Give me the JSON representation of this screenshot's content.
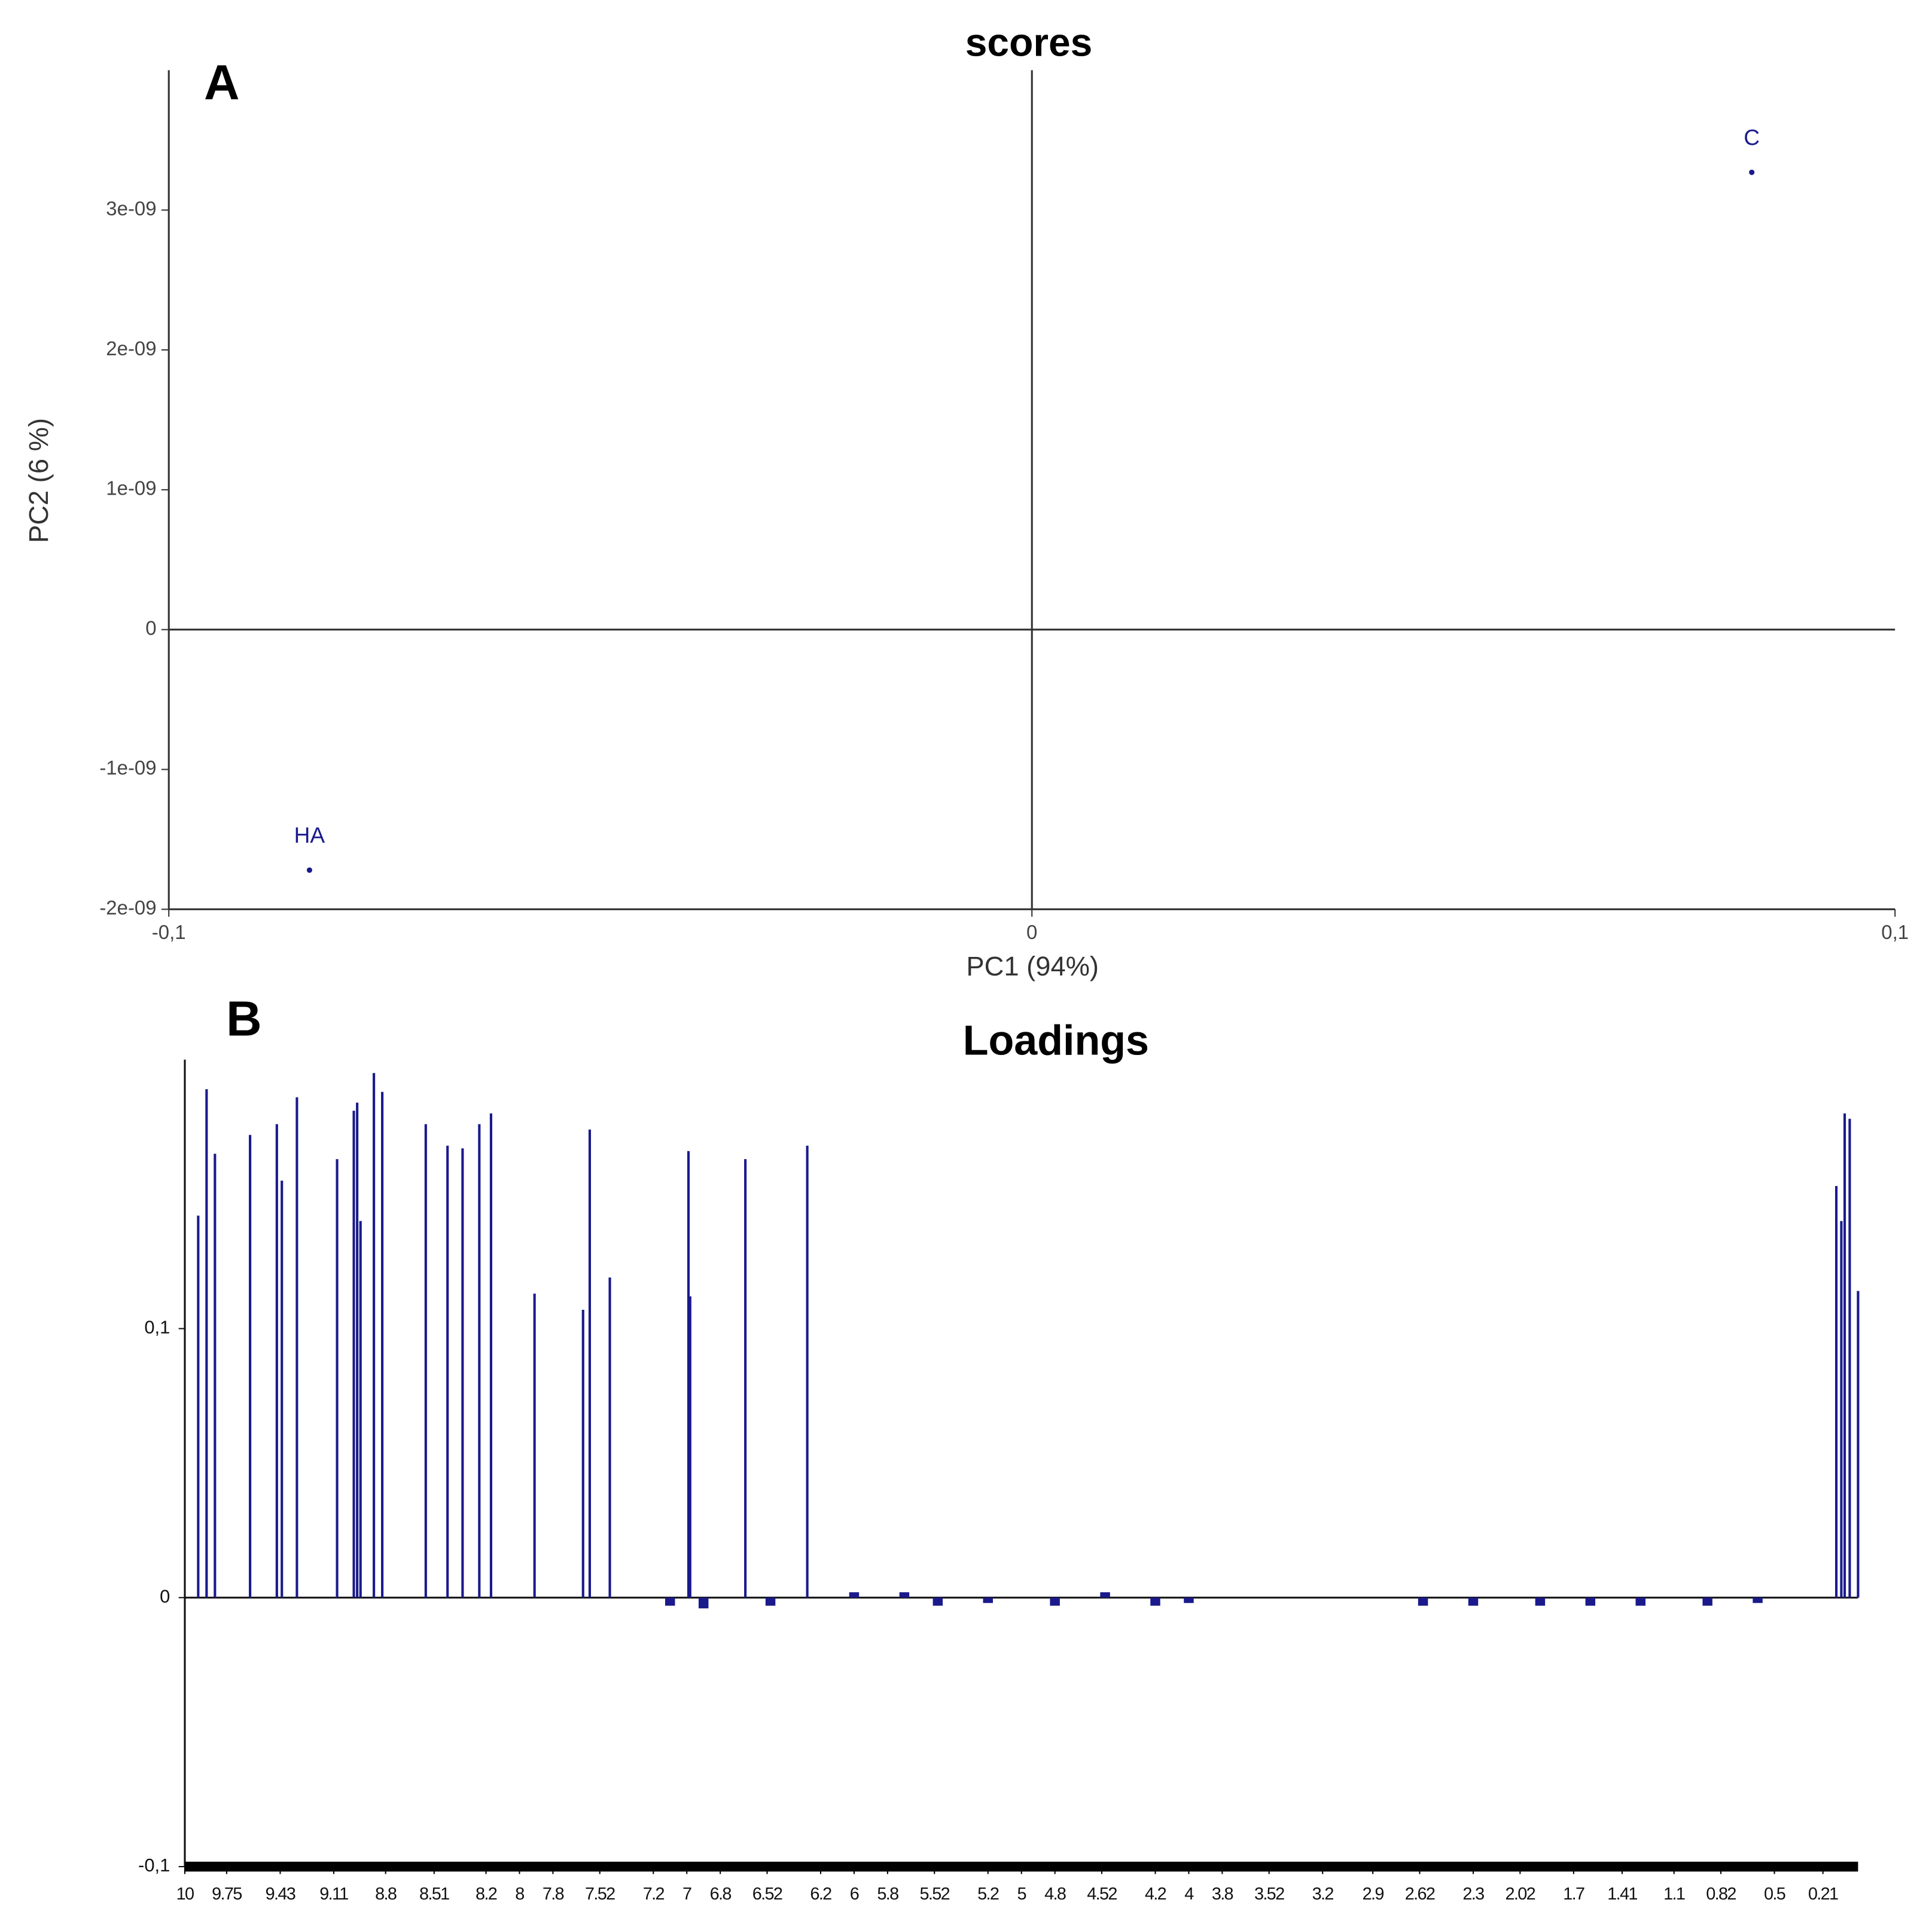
{
  "chart_data": [
    {
      "type": "scatter",
      "panel_label": "A",
      "title": "scores",
      "xlabel": "PC1 (94%)",
      "ylabel": "PC2 (6 %)",
      "labels": [
        "HA",
        "C"
      ],
      "x": [
        -0.0837,
        0.0834
      ],
      "values": [
        -1.72e-09,
        3.27e-09
      ],
      "color": "#1a1a8c",
      "xlim": [
        -0.1,
        0.1
      ],
      "xticks": [
        {
          "value": -0.1,
          "label": "-0,1"
        },
        0,
        {
          "value": 0.1,
          "label": "0,1"
        }
      ],
      "ylim": [
        -2e-09,
        4e-09
      ],
      "yticks": [
        {
          "value": -2e-09,
          "label": "-2e-09"
        },
        {
          "value": -1e-09,
          "label": "-1e-09"
        },
        0,
        {
          "value": 1e-09,
          "label": "1e-09"
        },
        {
          "value": 2e-09,
          "label": "2e-09"
        },
        {
          "value": 3e-09,
          "label": "3e-09"
        }
      ]
    },
    {
      "type": "bar",
      "panel_label": "B",
      "title": "Loadings",
      "x": [
        9.92,
        9.87,
        9.82,
        9.61,
        9.45,
        9.42,
        9.33,
        9.09,
        8.99,
        8.97,
        8.95,
        8.87,
        8.82,
        8.56,
        8.43,
        8.34,
        8.24,
        8.17,
        7.91,
        7.62,
        7.58,
        7.46,
        7.1,
        6.99,
        6.98,
        6.9,
        6.65,
        6.5,
        6.28,
        6.0,
        5.7,
        5.5,
        5.2,
        4.8,
        4.5,
        4.2,
        4.0,
        2.6,
        2.3,
        1.9,
        1.6,
        1.3,
        0.9,
        0.6,
        0.13,
        0.1,
        0.08,
        0.05,
        0.0
      ],
      "values": [
        0.142,
        0.189,
        0.165,
        0.172,
        0.176,
        0.155,
        0.186,
        0.163,
        0.181,
        0.184,
        0.14,
        0.195,
        0.188,
        0.176,
        0.168,
        0.167,
        0.176,
        0.18,
        0.113,
        0.107,
        0.174,
        0.119,
        -0.003,
        0.166,
        0.112,
        -0.004,
        0.163,
        -0.003,
        0.168,
        0.002,
        0.002,
        -0.003,
        -0.002,
        -0.003,
        0.002,
        -0.003,
        -0.002,
        -0.003,
        -0.003,
        -0.003,
        -0.003,
        -0.003,
        -0.003,
        -0.002,
        0.153,
        0.14,
        0.18,
        0.178,
        0.114
      ],
      "color": "#1a1a8c",
      "xlim": [
        10,
        0
      ],
      "xticks": [
        10,
        9.75,
        9.43,
        9.11,
        8.8,
        8.51,
        8.2,
        8,
        7.8,
        7.52,
        7.2,
        7,
        6.8,
        6.52,
        6.2,
        6,
        5.8,
        5.52,
        5.2,
        5,
        4.8,
        4.52,
        4.2,
        4,
        3.8,
        3.52,
        3.2,
        2.9,
        2.62,
        2.3,
        2.02,
        1.7,
        1.41,
        1.1,
        0.82,
        0.5,
        0.21
      ],
      "ylim": [
        -0.1,
        0.2
      ],
      "yticks": [
        {
          "value": -0.1,
          "label": "-0,1"
        },
        0,
        {
          "value": 0.1,
          "label": "0,1"
        }
      ]
    }
  ]
}
